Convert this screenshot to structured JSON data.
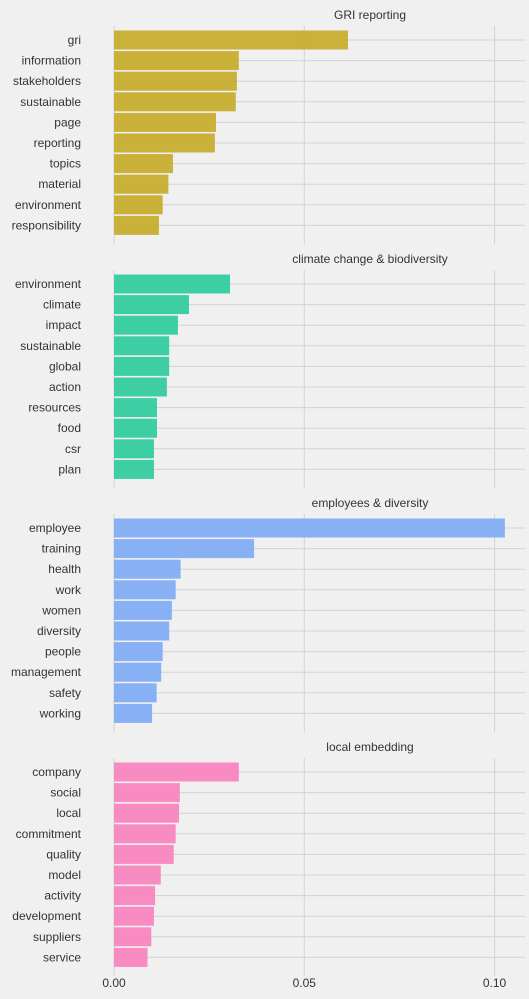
{
  "chart_data": {
    "type": "bar",
    "orientation": "horizontal",
    "grid": true,
    "xlim": [
      0,
      0.108
    ],
    "x_ticks": [
      0.0,
      0.05,
      0.1
    ],
    "x_tick_labels": [
      "0.00",
      "0.05",
      "0.10"
    ],
    "panels": [
      {
        "title": "GRI reporting",
        "color": "#c5ab2a",
        "categories": [
          "gri",
          "information",
          "stakeholders",
          "sustainable",
          "page",
          "reporting",
          "topics",
          "material",
          "environment",
          "responsibility"
        ],
        "values": [
          0.0615,
          0.0328,
          0.0323,
          0.032,
          0.0268,
          0.0265,
          0.0155,
          0.0143,
          0.0128,
          0.0118
        ]
      },
      {
        "title": "climate change & biodiversity",
        "color": "#2ecc9c",
        "categories": [
          "environment",
          "climate",
          "impact",
          "sustainable",
          "global",
          "action",
          "resources",
          "food",
          "csr",
          "plan"
        ],
        "values": [
          0.0305,
          0.0197,
          0.0168,
          0.0145,
          0.0145,
          0.0139,
          0.0113,
          0.0113,
          0.0105,
          0.0105
        ]
      },
      {
        "title": "employees & diversity",
        "color": "#7faaf5",
        "categories": [
          "employee",
          "training",
          "health",
          "work",
          "women",
          "diversity",
          "people",
          "management",
          "safety",
          "working"
        ],
        "values": [
          0.1027,
          0.0368,
          0.0175,
          0.0162,
          0.0152,
          0.0145,
          0.0128,
          0.0124,
          0.0112,
          0.01
        ]
      },
      {
        "title": "local embedding",
        "color": "#fa82bf",
        "categories": [
          "company",
          "social",
          "local",
          "commitment",
          "quality",
          "model",
          "activity",
          "development",
          "suppliers",
          "service"
        ],
        "values": [
          0.0328,
          0.0173,
          0.0171,
          0.0162,
          0.0157,
          0.0123,
          0.0108,
          0.0105,
          0.0098,
          0.0088
        ]
      }
    ]
  }
}
